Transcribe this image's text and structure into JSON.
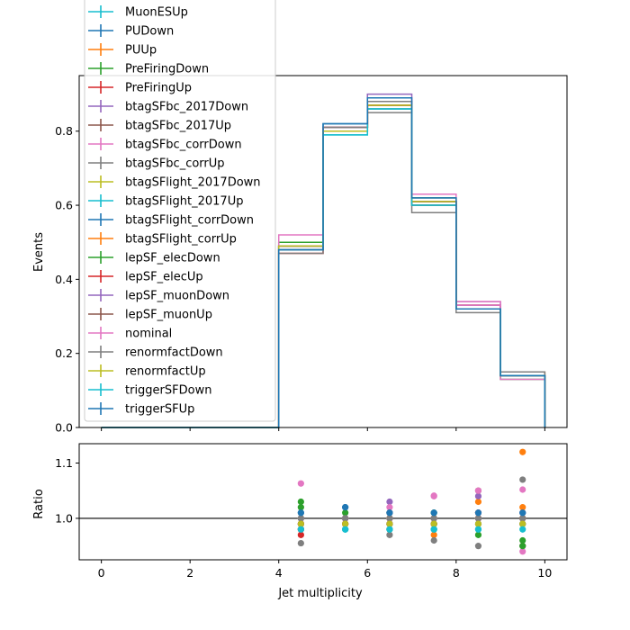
{
  "chart_data": [
    {
      "type": "line",
      "subtype": "step-histogram",
      "title": "",
      "xlabel": "",
      "ylabel": "Events",
      "xlim": [
        -0.5,
        10.5
      ],
      "ylim": [
        0.0,
        0.95
      ],
      "grid": false,
      "legend_placement": "upper-left",
      "bin_edges": [
        0,
        1,
        2,
        3,
        4,
        5,
        6,
        7,
        8,
        9,
        10
      ],
      "x_ticks": [
        0,
        2,
        4,
        6,
        8,
        10
      ],
      "x_tick_labels": [
        "0",
        "2",
        "4",
        "6",
        "8",
        "10"
      ],
      "y_ticks": [
        0.0,
        0.2,
        0.4,
        0.6,
        0.8
      ],
      "y_tick_labels": [
        "0.0",
        "0.2",
        "0.4",
        "0.6",
        "0.8"
      ],
      "series": [
        {
          "name": "MuonESUp",
          "color": "#17becf",
          "values": [
            0,
            0,
            0,
            0,
            0.49,
            0.8,
            0.87,
            0.61,
            0.32,
            0.14
          ]
        },
        {
          "name": "PUDown",
          "color": "#1f77b4",
          "values": [
            0,
            0,
            0,
            0,
            0.49,
            0.81,
            0.87,
            0.61,
            0.32,
            0.14
          ]
        },
        {
          "name": "PUUp",
          "color": "#ff7f0e",
          "values": [
            0,
            0,
            0,
            0,
            0.49,
            0.8,
            0.88,
            0.6,
            0.33,
            0.15
          ]
        },
        {
          "name": "PreFiringDown",
          "color": "#2ca02c",
          "values": [
            0,
            0,
            0,
            0,
            0.5,
            0.81,
            0.88,
            0.61,
            0.32,
            0.13
          ]
        },
        {
          "name": "PreFiringUp",
          "color": "#d62728",
          "values": [
            0,
            0,
            0,
            0,
            0.47,
            0.81,
            0.87,
            0.61,
            0.33,
            0.14
          ]
        },
        {
          "name": "btagSFbc_2017Down",
          "color": "#9467bd",
          "values": [
            0,
            0,
            0,
            0,
            0.49,
            0.81,
            0.9,
            0.61,
            0.34,
            0.14
          ]
        },
        {
          "name": "btagSFbc_2017Up",
          "color": "#8c564b",
          "values": [
            0,
            0,
            0,
            0,
            0.49,
            0.81,
            0.86,
            0.61,
            0.33,
            0.14
          ]
        },
        {
          "name": "btagSFbc_corrDown",
          "color": "#e377c2",
          "values": [
            0,
            0,
            0,
            0,
            0.49,
            0.81,
            0.89,
            0.62,
            0.34,
            0.13
          ]
        },
        {
          "name": "btagSFbc_corrUp",
          "color": "#7f7f7f",
          "values": [
            0,
            0,
            0,
            0,
            0.47,
            0.81,
            0.85,
            0.58,
            0.31,
            0.15
          ]
        },
        {
          "name": "btagSFlight_2017Down",
          "color": "#bcbd22",
          "values": [
            0,
            0,
            0,
            0,
            0.49,
            0.8,
            0.87,
            0.61,
            0.32,
            0.14
          ]
        },
        {
          "name": "btagSFlight_2017Up",
          "color": "#17becf",
          "values": [
            0,
            0,
            0,
            0,
            0.48,
            0.79,
            0.86,
            0.6,
            0.32,
            0.14
          ]
        },
        {
          "name": "btagSFlight_corrDown",
          "color": "#1f77b4",
          "values": [
            0,
            0,
            0,
            0,
            0.49,
            0.82,
            0.88,
            0.61,
            0.32,
            0.14
          ]
        },
        {
          "name": "btagSFlight_corrUp",
          "color": "#ff7f0e",
          "values": [
            0,
            0,
            0,
            0,
            0.49,
            0.8,
            0.87,
            0.61,
            0.32,
            0.14
          ]
        },
        {
          "name": "lepSF_elecDown",
          "color": "#2ca02c",
          "values": [
            0,
            0,
            0,
            0,
            0.5,
            0.81,
            0.88,
            0.62,
            0.32,
            0.14
          ]
        },
        {
          "name": "lepSF_elecUp",
          "color": "#d62728",
          "values": [
            0,
            0,
            0,
            0,
            0.48,
            0.81,
            0.87,
            0.61,
            0.32,
            0.14
          ]
        },
        {
          "name": "lepSF_muonDown",
          "color": "#9467bd",
          "values": [
            0,
            0,
            0,
            0,
            0.49,
            0.81,
            0.88,
            0.61,
            0.33,
            0.14
          ]
        },
        {
          "name": "lepSF_muonUp",
          "color": "#8c564b",
          "values": [
            0,
            0,
            0,
            0,
            0.48,
            0.81,
            0.87,
            0.6,
            0.32,
            0.14
          ]
        },
        {
          "name": "nominal",
          "color": "#e377c2",
          "values": [
            0,
            0,
            0,
            0,
            0.52,
            0.81,
            0.88,
            0.63,
            0.33,
            0.14
          ]
        },
        {
          "name": "renormfactDown",
          "color": "#7f7f7f",
          "values": [
            0,
            0,
            0,
            0,
            0.49,
            0.81,
            0.88,
            0.61,
            0.32,
            0.14
          ]
        },
        {
          "name": "renormfactUp",
          "color": "#bcbd22",
          "values": [
            0,
            0,
            0,
            0,
            0.49,
            0.8,
            0.87,
            0.61,
            0.32,
            0.14
          ]
        },
        {
          "name": "triggerSFDown",
          "color": "#17becf",
          "values": [
            0,
            0,
            0,
            0,
            0.48,
            0.79,
            0.86,
            0.6,
            0.32,
            0.14
          ]
        },
        {
          "name": "triggerSFUp",
          "color": "#1f77b4",
          "values": [
            0,
            0,
            0,
            0,
            0.48,
            0.82,
            0.89,
            0.62,
            0.32,
            0.14
          ]
        }
      ]
    },
    {
      "type": "scatter",
      "title": "",
      "xlabel": "Jet multiplicity",
      "ylabel": "Ratio",
      "xlim": [
        -0.5,
        10.5
      ],
      "ylim": [
        0.925,
        1.135
      ],
      "reference_line": 1.0,
      "grid": false,
      "x_ticks": [
        0,
        2,
        4,
        6,
        8,
        10
      ],
      "x_tick_labels": [
        "0",
        "2",
        "4",
        "6",
        "8",
        "10"
      ],
      "y_ticks": [
        1.0,
        1.1
      ],
      "y_tick_labels": [
        "1.0",
        "1.1"
      ],
      "x": [
        4.5,
        5.5,
        6.5,
        7.5,
        8.5,
        9.5
      ],
      "series": [
        {
          "name": "MuonESUp",
          "color": "#17becf",
          "values": [
            0.98,
            0.98,
            0.99,
            0.98,
            0.99,
            1.0
          ]
        },
        {
          "name": "PUDown",
          "color": "#1f77b4",
          "values": [
            0.99,
            1.0,
            0.99,
            0.99,
            1.0,
            1.0
          ]
        },
        {
          "name": "PUUp",
          "color": "#ff7f0e",
          "values": [
            0.99,
            0.99,
            1.0,
            0.97,
            1.03,
            1.12
          ]
        },
        {
          "name": "PreFiringDown",
          "color": "#2ca02c",
          "values": [
            1.03,
            1.0,
            1.0,
            0.99,
            0.97,
            0.96
          ]
        },
        {
          "name": "PreFiringUp",
          "color": "#d62728",
          "values": [
            0.97,
            1.0,
            1.0,
            0.99,
            1.01,
            0.99
          ]
        },
        {
          "name": "btagSFbc_2017Down",
          "color": "#9467bd",
          "values": [
            0.99,
            1.0,
            1.03,
            1.0,
            1.04,
            1.0
          ]
        },
        {
          "name": "btagSFbc_2017Up",
          "color": "#8c564b",
          "values": [
            0.99,
            1.0,
            0.98,
            1.0,
            1.05,
            0.95
          ]
        },
        {
          "name": "btagSFbc_corrDown",
          "color": "#e377c2",
          "values": [
            0.99,
            1.0,
            1.02,
            1.04,
            1.05,
            0.94
          ]
        },
        {
          "name": "btagSFbc_corrUp",
          "color": "#7f7f7f",
          "values": [
            0.955,
            0.99,
            0.97,
            0.96,
            0.95,
            1.07
          ]
        },
        {
          "name": "btagSFlight_2017Down",
          "color": "#bcbd22",
          "values": [
            1.0,
            1.0,
            1.0,
            1.0,
            1.0,
            1.0
          ]
        },
        {
          "name": "btagSFlight_2017Up",
          "color": "#17becf",
          "values": [
            0.98,
            0.98,
            0.98,
            0.98,
            0.98,
            0.99
          ]
        },
        {
          "name": "btagSFlight_corrDown",
          "color": "#1f77b4",
          "values": [
            1.01,
            1.02,
            1.01,
            1.01,
            1.01,
            1.01
          ]
        },
        {
          "name": "btagSFlight_corrUp",
          "color": "#ff7f0e",
          "values": [
            0.99,
            0.99,
            0.99,
            1.0,
            1.01,
            1.02
          ]
        },
        {
          "name": "lepSF_elecDown",
          "color": "#2ca02c",
          "values": [
            1.02,
            1.01,
            1.01,
            1.01,
            1.0,
            0.95
          ]
        },
        {
          "name": "lepSF_elecUp",
          "color": "#d62728",
          "values": [
            0.98,
            0.99,
            0.99,
            0.99,
            1.0,
            1.0
          ]
        },
        {
          "name": "lepSF_muonDown",
          "color": "#9467bd",
          "values": [
            1.0,
            1.0,
            1.01,
            1.0,
            1.01,
            1.01
          ]
        },
        {
          "name": "lepSF_muonUp",
          "color": "#8c564b",
          "values": [
            0.99,
            0.99,
            0.99,
            0.99,
            0.99,
            0.99
          ]
        },
        {
          "name": "nominal",
          "color": "#e377c2",
          "values": [
            1.063,
            1.0,
            1.0,
            1.041,
            1.0,
            1.052
          ]
        },
        {
          "name": "renormfactDown",
          "color": "#7f7f7f",
          "values": [
            1.0,
            1.0,
            1.0,
            1.0,
            1.0,
            1.0
          ]
        },
        {
          "name": "renormfactUp",
          "color": "#bcbd22",
          "values": [
            0.99,
            0.99,
            0.99,
            0.99,
            0.99,
            0.99
          ]
        },
        {
          "name": "triggerSFDown",
          "color": "#17becf",
          "values": [
            0.98,
            0.98,
            0.98,
            0.98,
            0.98,
            0.98
          ]
        },
        {
          "name": "triggerSFUp",
          "color": "#1f77b4",
          "values": [
            1.01,
            1.02,
            1.01,
            1.01,
            1.01,
            1.01
          ]
        }
      ]
    }
  ]
}
